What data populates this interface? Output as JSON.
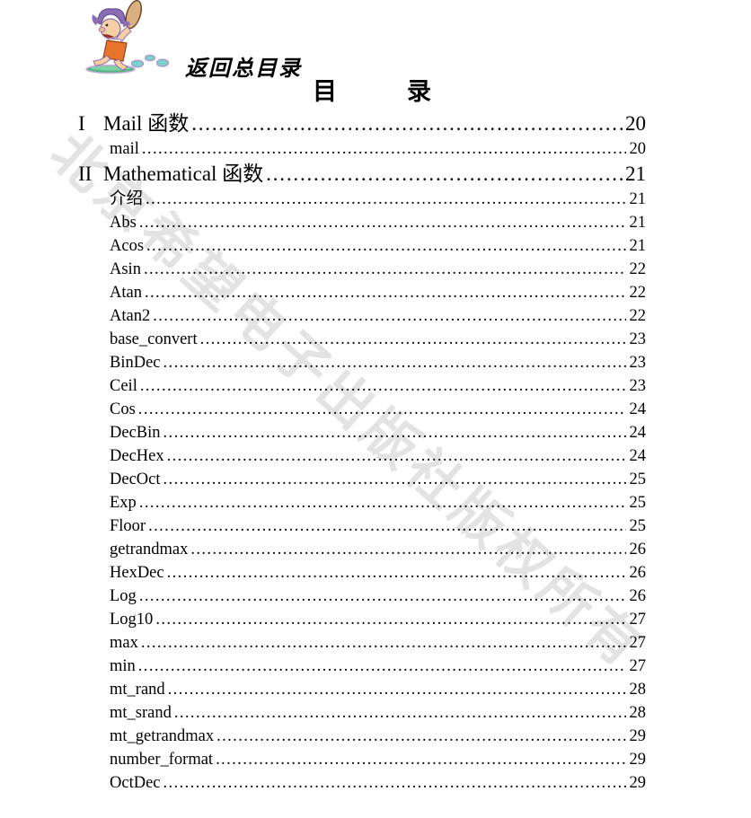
{
  "header": {
    "back_link_label": "返回总目录",
    "illustration": "running-caveman-cartoon",
    "title": "目　　录"
  },
  "watermark": {
    "text": "北京希望电子出版社版权所有",
    "color": "#e3e3e3"
  },
  "toc": {
    "entries": [
      {
        "level": 1,
        "numeral": "I",
        "label": "Mail 函数",
        "page": "20"
      },
      {
        "level": 2,
        "label": "mail",
        "page": "20"
      },
      {
        "level": 1,
        "numeral": "II",
        "label": "Mathematical 函数",
        "page": "21"
      },
      {
        "level": 2,
        "label": "介绍",
        "page": "21"
      },
      {
        "level": 2,
        "label": "Abs",
        "page": "21"
      },
      {
        "level": 2,
        "label": "Acos",
        "page": "21"
      },
      {
        "level": 2,
        "label": "Asin",
        "page": "22"
      },
      {
        "level": 2,
        "label": "Atan",
        "page": "22"
      },
      {
        "level": 2,
        "label": "Atan2",
        "page": "22"
      },
      {
        "level": 2,
        "label": "base_convert",
        "page": "23"
      },
      {
        "level": 2,
        "label": "BinDec",
        "page": "23"
      },
      {
        "level": 2,
        "label": "Ceil",
        "page": "23"
      },
      {
        "level": 2,
        "label": "Cos",
        "page": "24"
      },
      {
        "level": 2,
        "label": "DecBin",
        "page": "24"
      },
      {
        "level": 2,
        "label": "DecHex",
        "page": "24"
      },
      {
        "level": 2,
        "label": "DecOct",
        "page": "25"
      },
      {
        "level": 2,
        "label": "Exp",
        "page": "25"
      },
      {
        "level": 2,
        "label": "Floor",
        "page": "25"
      },
      {
        "level": 2,
        "label": "getrandmax",
        "page": "26"
      },
      {
        "level": 2,
        "label": "HexDec",
        "page": "26"
      },
      {
        "level": 2,
        "label": "Log",
        "page": "26"
      },
      {
        "level": 2,
        "label": "Log10",
        "page": "27"
      },
      {
        "level": 2,
        "label": "max",
        "page": "27"
      },
      {
        "level": 2,
        "label": "min",
        "page": "27"
      },
      {
        "level": 2,
        "label": "mt_rand",
        "page": "28"
      },
      {
        "level": 2,
        "label": "mt_srand",
        "page": "28"
      },
      {
        "level": 2,
        "label": "mt_getrandmax",
        "page": "29"
      },
      {
        "level": 2,
        "label": "number_format",
        "page": "29"
      },
      {
        "level": 2,
        "label": "OctDec",
        "page": "29"
      }
    ]
  }
}
